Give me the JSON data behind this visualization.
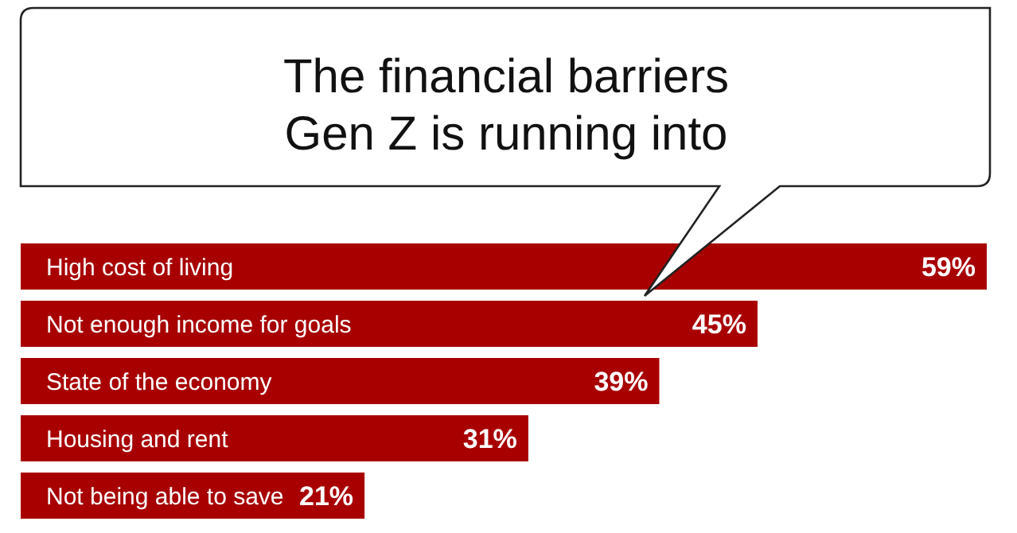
{
  "chart_data": {
    "type": "bar",
    "orientation": "horizontal",
    "title": "The financial barriers\nGen Z is running into",
    "categories": [
      "High cost of living",
      "Not enough income for goals",
      "State of the economy",
      "Housing and rent",
      "Not being able to save"
    ],
    "values": [
      59,
      45,
      39,
      31,
      21
    ],
    "value_labels": [
      "59%",
      "45%",
      "39%",
      "31%",
      "21%"
    ],
    "color": "#a80000"
  }
}
